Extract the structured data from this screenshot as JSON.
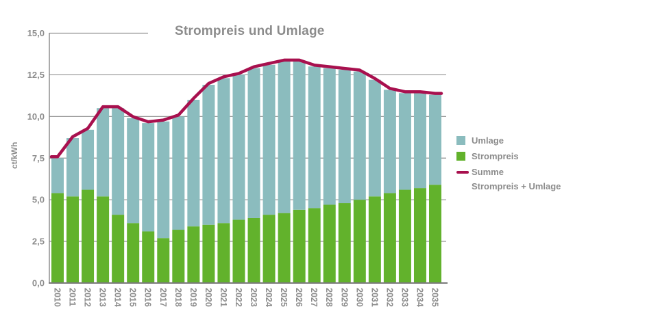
{
  "chart_data": {
    "type": "bar",
    "stacked": true,
    "title": "Strompreis und Umlage",
    "ylabel": "ct/kWh",
    "xlabel": "",
    "grid": true,
    "legend_position": "right",
    "ylim": [
      0,
      15
    ],
    "ytick_values": [
      0,
      2.5,
      5,
      7.5,
      10,
      12.5,
      15
    ],
    "ytick_labels": [
      "0,0",
      "2,5",
      "5,0",
      "7,5",
      "10,0",
      "12,5",
      "15,0"
    ],
    "categories": [
      "2010",
      "2011",
      "2012",
      "2013",
      "2014",
      "2015",
      "2016",
      "2017",
      "2018",
      "2019",
      "2020",
      "2021",
      "2022",
      "2023",
      "2024",
      "2025",
      "2026",
      "2027",
      "2028",
      "2029",
      "2030",
      "2031",
      "2032",
      "2033",
      "2034",
      "2035"
    ],
    "series": [
      {
        "name": "Strompreis",
        "values": [
          5.4,
          5.2,
          5.6,
          5.2,
          4.1,
          3.6,
          3.1,
          2.7,
          3.2,
          3.4,
          3.5,
          3.6,
          3.8,
          3.9,
          4.1,
          4.2,
          4.4,
          4.5,
          4.7,
          4.8,
          5.0,
          5.2,
          5.4,
          5.6,
          5.7,
          5.9
        ]
      },
      {
        "name": "Umlage",
        "values": [
          2.1,
          3.5,
          3.6,
          5.3,
          6.4,
          6.3,
          6.5,
          7.0,
          6.8,
          7.6,
          8.4,
          8.7,
          8.7,
          9.0,
          9.0,
          9.1,
          8.9,
          8.5,
          8.2,
          8.0,
          7.7,
          7.0,
          6.2,
          5.8,
          5.7,
          5.4
        ]
      }
    ],
    "line_series": {
      "name": "Summe Strompreis + Umlage",
      "values": [
        7.5,
        8.7,
        9.2,
        10.5,
        10.5,
        9.9,
        9.6,
        9.7,
        10.0,
        11.0,
        11.9,
        12.3,
        12.5,
        12.9,
        13.1,
        13.3,
        13.3,
        13.0,
        12.9,
        12.8,
        12.7,
        12.2,
        11.6,
        11.4,
        11.4,
        11.3
      ]
    },
    "legend": {
      "umlage": "Umlage",
      "strompreis": "Strompreis",
      "summe_line1": "Summe",
      "summe_line2": "Strompreis + Umlage"
    }
  },
  "colors": {
    "umlage": "#8bbcbe",
    "strompreis": "#62b22c",
    "summe": "#a8104e",
    "text": "#8c8c8c",
    "grid": "#8f8f8f",
    "axis": "#7a7a7a"
  }
}
